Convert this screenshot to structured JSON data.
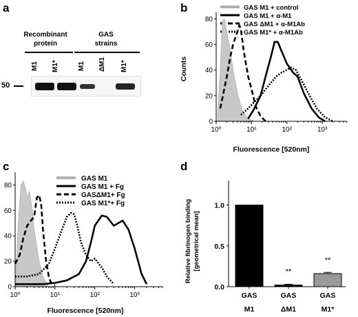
{
  "panel_a": {
    "letter": "a",
    "group1": {
      "line1": "Recombinant",
      "line2": "protein"
    },
    "group2": {
      "line1": "GAS",
      "line2": "strains"
    },
    "lanes": [
      "M1",
      "M1*",
      "M1",
      "ΔM1",
      "M1*"
    ],
    "marker": "50",
    "band_intensity": [
      1.0,
      1.0,
      0.6,
      0.0,
      0.8
    ]
  },
  "panel_b": {
    "letter": "b",
    "legend": [
      "GAS  M1   + control",
      "GAS  M1   + α-M1",
      "GAS  ΔM1 + α-M1Ab",
      "GAS  M1* + α-M1Ab"
    ],
    "colors": [
      "#b0b0b0",
      "#000000",
      "#000000",
      "#000000"
    ]
  },
  "panel_c": {
    "letter": "c",
    "legend": [
      "GAS M1",
      "GAS M1 + Fg",
      "GASΔM1+ Fg",
      "GAS M1*+ Fg"
    ]
  },
  "panel_d": {
    "letter": "d",
    "bar_colors": [
      "#000000",
      "#000000",
      "#999999"
    ],
    "significance": [
      "",
      "**",
      "**"
    ],
    "category_line1": [
      "GAS",
      "GAS",
      "GAS"
    ],
    "category_line2": [
      "M1",
      "ΔM1",
      "M1*"
    ]
  },
  "chart_data": [
    {
      "type": "line",
      "panel": "b",
      "xlabel": "Fluorescence [520nm]",
      "ylabel": "Counts",
      "xscale": "log",
      "xlim": [
        1,
        5000
      ],
      "ylim": [
        0,
        85
      ],
      "yticks": [
        0,
        20,
        40,
        60,
        80
      ],
      "xticks": [
        "10⁰",
        "10¹",
        "10²",
        "10³"
      ],
      "series": [
        {
          "name": "GAS  M1   + control",
          "style": "filled-grey",
          "x": [
            1.1,
            1.3,
            1.5,
            1.7,
            2.0,
            2.5,
            3,
            4,
            5,
            6,
            8,
            10,
            12
          ],
          "y": [
            5,
            40,
            78,
            80,
            70,
            55,
            40,
            22,
            12,
            6,
            2,
            1,
            0
          ]
        },
        {
          "name": "GAS  M1   + α-M1",
          "style": "solid",
          "x": [
            8,
            12,
            18,
            25,
            35,
            45,
            55,
            70,
            100,
            150,
            200,
            300,
            500,
            800,
            1200
          ],
          "y": [
            2,
            10,
            20,
            35,
            50,
            62,
            62,
            55,
            45,
            38,
            35,
            22,
            10,
            3,
            0
          ]
        },
        {
          "name": "GAS  ΔM1 + α-M1Ab",
          "style": "dashed",
          "x": [
            1.3,
            1.6,
            2,
            2.5,
            3,
            4,
            4.5,
            5,
            6,
            8,
            10,
            13,
            18,
            25
          ],
          "y": [
            10,
            22,
            35,
            50,
            60,
            70,
            75,
            72,
            55,
            35,
            25,
            12,
            4,
            0
          ]
        },
        {
          "name": "GAS  M1* + α-M1Ab",
          "style": "dotted",
          "x": [
            5,
            8,
            12,
            18,
            25,
            35,
            50,
            70,
            100,
            130,
            180,
            250,
            400,
            700,
            1200,
            2000
          ],
          "y": [
            5,
            10,
            15,
            20,
            25,
            30,
            35,
            38,
            40,
            42,
            40,
            33,
            22,
            10,
            3,
            0
          ]
        }
      ]
    },
    {
      "type": "line",
      "panel": "c",
      "xlabel": "Fluorescence [520nm]",
      "ylabel": "",
      "xscale": "log",
      "xlim": [
        1,
        5000
      ],
      "ylim": [
        0,
        90
      ],
      "yticks": [
        0,
        20,
        40,
        60,
        80
      ],
      "xticks": [
        "10⁰",
        "10¹",
        "10²",
        "10³"
      ],
      "series": [
        {
          "name": "GAS M1",
          "style": "filled-grey",
          "x": [
            1.05,
            1.2,
            1.4,
            1.6,
            1.8,
            2.0,
            2.3,
            2.7,
            3,
            4,
            5,
            6,
            7
          ],
          "y": [
            10,
            50,
            80,
            83,
            78,
            70,
            75,
            60,
            45,
            20,
            8,
            3,
            0
          ]
        },
        {
          "name": "GAS M1 + Fg",
          "style": "solid",
          "x": [
            1,
            2,
            5,
            10,
            20,
            40,
            60,
            80,
            100,
            150,
            200,
            300,
            500,
            700,
            1000,
            1500,
            2000
          ],
          "y": [
            2,
            2,
            2,
            3,
            5,
            10,
            20,
            35,
            48,
            56,
            55,
            48,
            52,
            45,
            30,
            10,
            2
          ]
        },
        {
          "name": "GASΔM1+ Fg",
          "style": "dashed",
          "x": [
            1,
            1.3,
            1.6,
            2,
            2.5,
            3,
            3.5,
            4,
            4.5,
            5,
            6,
            7,
            8,
            10
          ],
          "y": [
            18,
            25,
            38,
            48,
            52,
            55,
            70,
            72,
            65,
            45,
            20,
            8,
            3,
            1
          ]
        },
        {
          "name": "GAS M1*+ Fg",
          "style": "dotted",
          "x": [
            1,
            2,
            4,
            7,
            10,
            15,
            20,
            25,
            30,
            35,
            45,
            60,
            80,
            100,
            150,
            200,
            300
          ],
          "y": [
            8,
            8,
            10,
            18,
            30,
            45,
            55,
            58,
            57,
            50,
            35,
            25,
            20,
            22,
            15,
            8,
            2
          ]
        }
      ]
    },
    {
      "type": "bar",
      "panel": "d",
      "ylabel": "Relative fibrinogen binding [geometrical mean]",
      "ylim": [
        0,
        1.3
      ],
      "yticks": [
        "0.0",
        "0.5",
        "1.0"
      ],
      "categories": [
        "GAS M1",
        "GAS ΔM1",
        "GAS M1*"
      ],
      "values": [
        1.0,
        0.02,
        0.16
      ],
      "errors": [
        0,
        0.01,
        0.015
      ]
    }
  ]
}
